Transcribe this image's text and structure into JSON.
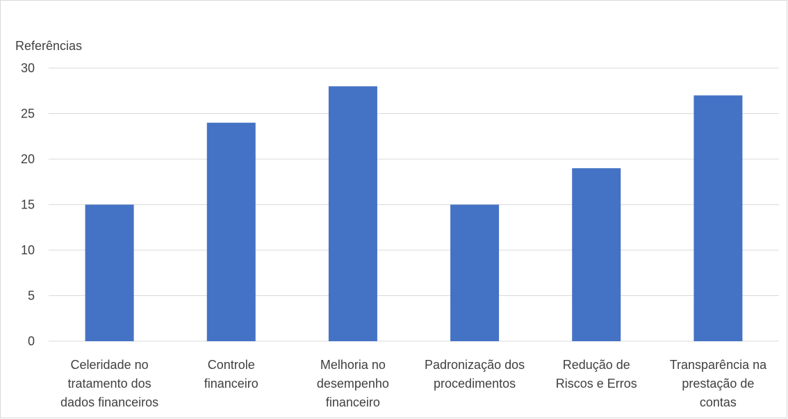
{
  "chart_data": {
    "type": "bar",
    "title": "",
    "xlabel": "",
    "ylabel": "Referências",
    "ylim": [
      0,
      30
    ],
    "yticks": [
      0,
      5,
      10,
      15,
      20,
      25,
      30
    ],
    "grid": true,
    "legend": "none",
    "categories": [
      "Celeridade no tratamento dos dados financeiros",
      "Controle financeiro",
      "Melhoria no desempenho financeiro",
      "Padronização dos procedimentos",
      "Redução de Riscos e Erros",
      "Transparência na prestação de contas"
    ],
    "category_lines": [
      [
        "Celeridade no",
        "tratamento dos",
        "dados financeiros"
      ],
      [
        "Controle",
        "financeiro"
      ],
      [
        "Melhoria no",
        "desempenho",
        "financeiro"
      ],
      [
        "Padronização dos",
        "procedimentos"
      ],
      [
        "Redução de",
        "Riscos e Erros"
      ],
      [
        "Transparência na",
        "prestação de",
        "contas"
      ]
    ],
    "values": [
      15,
      24,
      28,
      15,
      19,
      27
    ],
    "colors": {
      "bar": "#4472C4",
      "grid": "#d9d9d9",
      "axis": "#d9d9d9",
      "text": "#404040"
    }
  }
}
